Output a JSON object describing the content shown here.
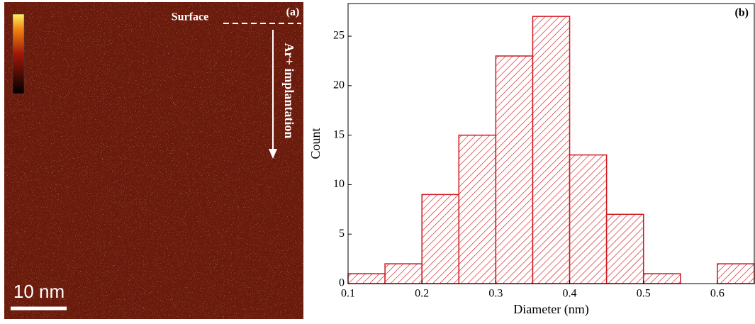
{
  "chart_data": [
    {
      "type": "image",
      "panel_label": "(a)",
      "annotations": [
        "Surface",
        "Ar+ implantation"
      ],
      "scale_bar": "10 nm"
    },
    {
      "type": "histogram",
      "panel_label": "(b)",
      "xlabel": "Diameter (nm)",
      "ylabel": "Count",
      "bins": [
        0.1,
        0.15,
        0.2,
        0.25,
        0.3,
        0.35,
        0.4,
        0.45,
        0.5,
        0.55,
        0.6,
        0.65
      ],
      "values": [
        1,
        2,
        9,
        15,
        23,
        27,
        13,
        7,
        1,
        0,
        2
      ],
      "color": "#d0181e",
      "xlim": [
        0.1,
        0.65
      ],
      "xticks": [
        0.1,
        0.2,
        0.3,
        0.4,
        0.5,
        0.6
      ],
      "ylim": [
        0,
        28.3
      ],
      "yticks": [
        0,
        5,
        10,
        15,
        20,
        25
      ]
    }
  ]
}
